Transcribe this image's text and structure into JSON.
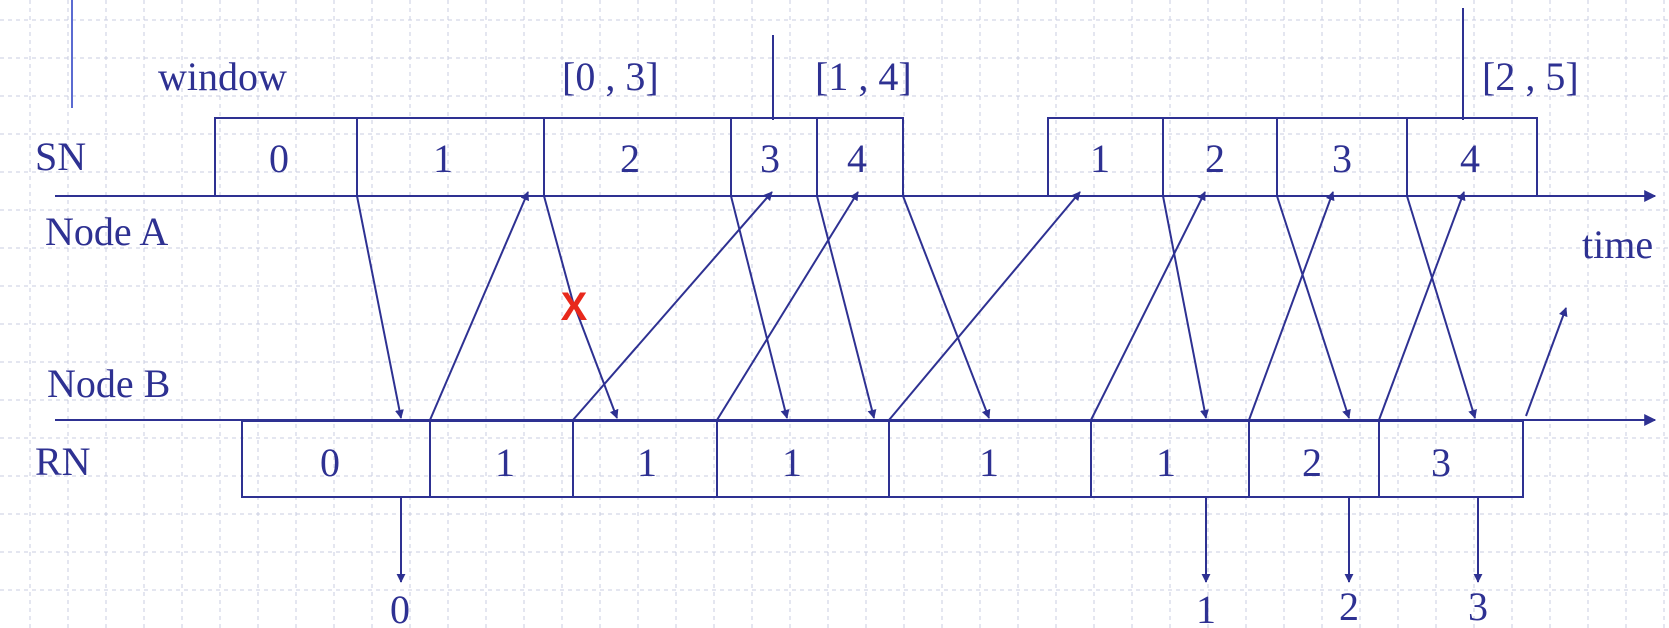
{
  "labels": {
    "window": "window",
    "sn": "SN",
    "node_a": "Node A",
    "node_b": "Node B",
    "rn": "RN",
    "time": "time",
    "loss_mark": "X"
  },
  "window_annotations": [
    "[0 , 3]",
    "[1 , 4]",
    "[2 , 5]"
  ],
  "sn_values": [
    "0",
    "1",
    "2",
    "3",
    "4",
    "1",
    "2",
    "3",
    "4"
  ],
  "rn_values": [
    "0",
    "1",
    "1",
    "1",
    "1",
    "1",
    "2",
    "3"
  ],
  "delivered_packets": [
    "0",
    "1",
    "2",
    "3"
  ],
  "colors": {
    "line": "#2E3192",
    "loss_mark": "#E8291C",
    "grid": "#C9CCE0"
  }
}
